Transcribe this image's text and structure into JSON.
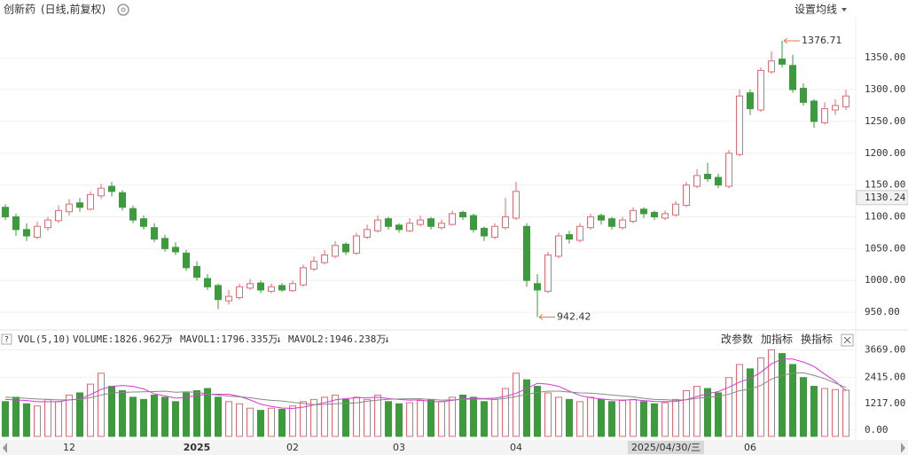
{
  "header": {
    "name": "创新药",
    "period": "(日线,前复权)",
    "settings": "设置均线"
  },
  "chart_data": [
    {
      "type": "candlestick",
      "categories": [
        null,
        null,
        null,
        null,
        null,
        null,
        "12",
        null,
        null,
        null,
        null,
        null,
        null,
        null,
        null,
        null,
        null,
        null,
        "2025",
        null,
        null,
        null,
        null,
        null,
        null,
        null,
        null,
        "02",
        null,
        null,
        null,
        null,
        null,
        null,
        null,
        null,
        null,
        "03",
        null,
        null,
        null,
        null,
        null,
        null,
        null,
        null,
        null,
        null,
        "04",
        null,
        null,
        null,
        null,
        null,
        null,
        null,
        null,
        null,
        null,
        null,
        null,
        null,
        null,
        null,
        null,
        null,
        null,
        null,
        null,
        null,
        "06",
        null,
        null,
        null,
        null,
        null,
        null,
        null,
        null,
        null
      ],
      "cursor_label": "2025/04/30/三",
      "open": [
        1115,
        1100,
        1080,
        1068,
        1083,
        1094,
        1108,
        1122,
        1112,
        1133,
        1148,
        1138,
        1113,
        1097,
        1083,
        1066,
        1052,
        1043,
        1022,
        1003,
        992,
        968,
        973,
        988,
        996,
        983,
        992,
        984,
        993,
        1018,
        1028,
        1038,
        1057,
        1043,
        1068,
        1078,
        1097,
        1087,
        1078,
        1088,
        1097,
        1083,
        1088,
        1107,
        1102,
        1082,
        1068,
        1083,
        1098,
        1085,
        995,
        983,
        1038,
        1072,
        1063,
        1083,
        1102,
        1097,
        1083,
        1093,
        1112,
        1107,
        1098,
        1103,
        1118,
        1148,
        1167,
        1162,
        1148,
        1198,
        1295,
        1268,
        1328,
        1348,
        1338,
        1302,
        1282,
        1248,
        1268,
        1273
      ],
      "high": [
        1120,
        1105,
        1090,
        1092,
        1100,
        1118,
        1128,
        1130,
        1140,
        1152,
        1155,
        1142,
        1118,
        1102,
        1090,
        1072,
        1060,
        1048,
        1030,
        1010,
        995,
        985,
        995,
        1002,
        1000,
        995,
        996,
        1000,
        1025,
        1038,
        1048,
        1062,
        1060,
        1075,
        1088,
        1102,
        1100,
        1090,
        1098,
        1102,
        1100,
        1096,
        1110,
        1110,
        1105,
        1085,
        1090,
        1130,
        1155,
        1090,
        1010,
        1045,
        1075,
        1078,
        1090,
        1105,
        1105,
        1100,
        1100,
        1115,
        1115,
        1110,
        1110,
        1125,
        1155,
        1175,
        1185,
        1168,
        1205,
        1300,
        1300,
        1335,
        1360,
        1376.71,
        1355,
        1310,
        1285,
        1280,
        1285,
        1300
      ],
      "low": [
        1095,
        1070,
        1062,
        1065,
        1078,
        1090,
        1102,
        1108,
        1110,
        1128,
        1132,
        1110,
        1090,
        1080,
        1060,
        1045,
        1040,
        1015,
        1000,
        985,
        955,
        962,
        970,
        985,
        980,
        980,
        982,
        982,
        990,
        1015,
        1025,
        1035,
        1040,
        1040,
        1065,
        1075,
        1080,
        1075,
        1076,
        1085,
        1080,
        1080,
        1086,
        1095,
        1075,
        1062,
        1065,
        1080,
        1095,
        990,
        942.42,
        980,
        1035,
        1058,
        1060,
        1080,
        1088,
        1080,
        1080,
        1090,
        1098,
        1095,
        1095,
        1100,
        1115,
        1145,
        1155,
        1145,
        1145,
        1195,
        1260,
        1265,
        1325,
        1335,
        1295,
        1275,
        1240,
        1245,
        1260,
        1268
      ],
      "close": [
        1100,
        1080,
        1070,
        1085,
        1095,
        1110,
        1120,
        1115,
        1135,
        1145,
        1140,
        1115,
        1095,
        1085,
        1065,
        1050,
        1045,
        1020,
        1005,
        990,
        970,
        975,
        990,
        995,
        985,
        990,
        985,
        995,
        1020,
        1030,
        1040,
        1055,
        1045,
        1070,
        1080,
        1095,
        1085,
        1080,
        1090,
        1095,
        1085,
        1090,
        1105,
        1100,
        1080,
        1070,
        1085,
        1100,
        1140,
        1000,
        985,
        1040,
        1070,
        1065,
        1085,
        1100,
        1095,
        1085,
        1095,
        1110,
        1105,
        1100,
        1105,
        1120,
        1150,
        1165,
        1160,
        1150,
        1200,
        1290,
        1270,
        1330,
        1345,
        1340,
        1300,
        1280,
        1250,
        1270,
        1275,
        1290
      ],
      "up_color": "#e06b72",
      "down_color": "#3d9a3d",
      "ylim": [
        925,
        1413
      ],
      "yticks": [
        {
          "value": 950,
          "label": "950.00"
        },
        {
          "value": 1000,
          "label": "1000.00"
        },
        {
          "value": 1050,
          "label": "1050.00"
        },
        {
          "value": 1100,
          "label": "1100.00"
        },
        {
          "value": 1150,
          "label": "1150.00"
        },
        {
          "value": 1200,
          "label": "1200.00"
        },
        {
          "value": 1250,
          "label": "1250.00"
        },
        {
          "value": 1300,
          "label": "1300.00"
        },
        {
          "value": 1350,
          "label": "1350.00"
        }
      ],
      "max_price": 1376.71,
      "min_price": 942.42,
      "price_marker": 1130.24,
      "grid": true
    },
    {
      "type": "volume",
      "title": "VOL(5,10)",
      "legend": [
        "VOLUME:1826.962万",
        "MAVOL1:1796.335万",
        "MAVOL2:1946.238万"
      ],
      "buttons": [
        "改参数",
        "加指标",
        "换指标"
      ],
      "values": [
        1300,
        1500,
        1200,
        1100,
        1400,
        1300,
        1600,
        1700,
        2100,
        2600,
        2000,
        1800,
        1500,
        1400,
        1600,
        1500,
        1300,
        1700,
        1800,
        1900,
        1500,
        1300,
        1200,
        1000,
        900,
        1000,
        950,
        1100,
        1300,
        1400,
        1500,
        1600,
        1400,
        1500,
        1400,
        1600,
        1300,
        1200,
        1250,
        1350,
        1400,
        1300,
        1500,
        1600,
        1500,
        1300,
        1400,
        1900,
        2600,
        2300,
        2000,
        1700,
        1500,
        1400,
        1300,
        1500,
        1400,
        1300,
        1350,
        1400,
        1300,
        1200,
        1250,
        1400,
        1800,
        2000,
        1900,
        1700,
        2400,
        3000,
        2800,
        3300,
        3669,
        3500,
        3000,
        2400,
        2000,
        1900,
        1850,
        1826.962
      ],
      "series": [
        {
          "name": "MAVOL1",
          "color": "#d63ad6",
          "values": [
            1400,
            1380,
            1350,
            1300,
            1300,
            1300,
            1380,
            1420,
            1620,
            1860,
            2000,
            2040,
            2000,
            1880,
            1660,
            1560,
            1460,
            1500,
            1580,
            1640,
            1640,
            1640,
            1540,
            1380,
            1180,
            1080,
            1010,
            990,
            1050,
            1150,
            1250,
            1380,
            1440,
            1480,
            1480,
            1500,
            1440,
            1400,
            1370,
            1380,
            1300,
            1300,
            1360,
            1430,
            1460,
            1440,
            1460,
            1540,
            1680,
            1900,
            2140,
            2100,
            2000,
            1780,
            1580,
            1480,
            1420,
            1380,
            1370,
            1390,
            1350,
            1310,
            1300,
            1310,
            1390,
            1530,
            1670,
            1760,
            1960,
            2200,
            2360,
            2640,
            3030,
            3250,
            3250,
            3110,
            2910,
            2560,
            2230,
            1796.335
          ]
        },
        {
          "name": "MAVOL2",
          "color": "#888888",
          "values": [
            1500,
            1480,
            1450,
            1420,
            1400,
            1380,
            1380,
            1400,
            1480,
            1600,
            1700,
            1720,
            1740,
            1750,
            1760,
            1780,
            1730,
            1750,
            1730,
            1650,
            1600,
            1550,
            1520,
            1480,
            1410,
            1360,
            1330,
            1270,
            1220,
            1160,
            1170,
            1200,
            1220,
            1240,
            1320,
            1370,
            1410,
            1420,
            1430,
            1430,
            1400,
            1370,
            1380,
            1400,
            1420,
            1420,
            1400,
            1450,
            1530,
            1630,
            1720,
            1780,
            1780,
            1740,
            1700,
            1690,
            1650,
            1600,
            1560,
            1520,
            1450,
            1400,
            1390,
            1360,
            1390,
            1450,
            1500,
            1540,
            1640,
            1800,
            1870,
            2040,
            2330,
            2500,
            2600,
            2620,
            2500,
            2350,
            2150,
            1946.238
          ]
        }
      ],
      "ylim": [
        -290,
        3850
      ],
      "yticks": [
        {
          "value": 0,
          "label": "0.00"
        },
        {
          "value": 1217,
          "label": "1217.00"
        },
        {
          "value": 2415,
          "label": "2415.00"
        },
        {
          "value": 3669,
          "label": "3669.00"
        }
      ]
    }
  ]
}
